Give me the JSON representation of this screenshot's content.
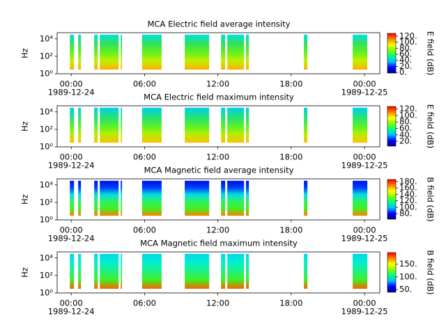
{
  "chart_data": [
    {
      "type": "spectrogram",
      "title": "MCA  Electric field average intensity",
      "ylabel": "Hz",
      "yscale": "log",
      "ylim": [
        1,
        50000
      ],
      "yticks": [
        {
          "value": 1,
          "label": "10⁰"
        },
        {
          "value": 100,
          "label": "10²"
        },
        {
          "value": 10000,
          "label": "10⁴"
        }
      ],
      "xlim": [
        -1.15,
        25.25
      ],
      "xticks": [
        {
          "value": 0,
          "label": "00:00"
        },
        {
          "value": 6,
          "label": "06:00"
        },
        {
          "value": 12,
          "label": "12:00"
        },
        {
          "value": 18,
          "label": "18:00"
        },
        {
          "value": 24,
          "label": "00:00"
        }
      ],
      "date_labels": [
        {
          "value": 0,
          "label": "1989-12-24"
        },
        {
          "value": 24,
          "label": "1989-12-25"
        }
      ],
      "intervals": [
        [
          -0.11,
          0.23
        ],
        [
          0.57,
          0.8
        ],
        [
          1.88,
          2.17
        ],
        [
          2.34,
          3.88
        ],
        [
          4.05,
          4.16
        ],
        [
          5.8,
          7.4
        ],
        [
          9.29,
          11.29
        ],
        [
          12.26,
          12.6
        ],
        [
          12.77,
          14.14
        ],
        [
          14.3,
          14.54
        ],
        [
          19.04,
          19.33
        ],
        [
          23.03,
          24.23
        ]
      ],
      "frequency_range": [
        3,
        30000
      ],
      "band_colors": [
        "#00e0e0",
        "#30e060",
        "#60f020",
        "#c0f000",
        "#ffb000"
      ],
      "colorbar": {
        "label": "E field (dB)",
        "lim": [
          -2,
          129
        ],
        "ticks": [
          {
            "value": 0,
            "label": "0."
          },
          {
            "value": 20,
            "label": "20."
          },
          {
            "value": 40,
            "label": "40."
          },
          {
            "value": 60,
            "label": "60."
          },
          {
            "value": 80,
            "label": "80."
          },
          {
            "value": 100,
            "label": "100."
          },
          {
            "value": 120,
            "label": "120."
          }
        ],
        "colormap": [
          "#000090",
          "#0000ff",
          "#00c0ff",
          "#00ff80",
          "#80ff00",
          "#ffff00",
          "#ff8000",
          "#ff0000"
        ]
      }
    },
    {
      "type": "spectrogram",
      "title": "MCA  Electric field maximum intensity",
      "ylabel": "Hz",
      "yscale": "log",
      "ylim": [
        1,
        50000
      ],
      "yticks": [
        {
          "value": 1,
          "label": "10⁰"
        },
        {
          "value": 100,
          "label": "10²"
        },
        {
          "value": 10000,
          "label": "10⁴"
        }
      ],
      "xlim": [
        -1.15,
        25.25
      ],
      "xticks": [
        {
          "value": 0,
          "label": "00:00"
        },
        {
          "value": 6,
          "label": "06:00"
        },
        {
          "value": 12,
          "label": "12:00"
        },
        {
          "value": 18,
          "label": "18:00"
        },
        {
          "value": 24,
          "label": "00:00"
        }
      ],
      "date_labels": [
        {
          "value": 0,
          "label": "1989-12-24"
        },
        {
          "value": 24,
          "label": "1989-12-25"
        }
      ],
      "intervals": [
        [
          -0.11,
          0.23
        ],
        [
          0.57,
          0.8
        ],
        [
          1.88,
          2.17
        ],
        [
          2.34,
          3.88
        ],
        [
          4.05,
          4.16
        ],
        [
          5.8,
          7.4
        ],
        [
          9.29,
          11.29
        ],
        [
          12.26,
          12.6
        ],
        [
          12.77,
          14.14
        ],
        [
          14.3,
          14.54
        ],
        [
          19.04,
          19.33
        ],
        [
          23.03,
          24.23
        ]
      ],
      "frequency_range": [
        3,
        30000
      ],
      "band_colors": [
        "#00d0f0",
        "#20e080",
        "#50f030",
        "#b0f000",
        "#ffc000"
      ],
      "colorbar": {
        "label": "E field (dB)",
        "lim": [
          5,
          128
        ],
        "ticks": [
          {
            "value": 20,
            "label": "20."
          },
          {
            "value": 40,
            "label": "40."
          },
          {
            "value": 60,
            "label": "60."
          },
          {
            "value": 80,
            "label": "80."
          },
          {
            "value": 100,
            "label": "100."
          },
          {
            "value": 120,
            "label": "120."
          }
        ],
        "colormap": [
          "#000090",
          "#0000ff",
          "#00c0ff",
          "#00ff80",
          "#80ff00",
          "#ffff00",
          "#ff8000",
          "#ff0000"
        ]
      }
    },
    {
      "type": "spectrogram",
      "title": "MCA  Magnetic field average intensity",
      "ylabel": "Hz",
      "yscale": "log",
      "ylim": [
        1,
        50000
      ],
      "yticks": [
        {
          "value": 1,
          "label": "10⁰"
        },
        {
          "value": 100,
          "label": "10²"
        },
        {
          "value": 10000,
          "label": "10⁴"
        }
      ],
      "xlim": [
        -1.15,
        25.25
      ],
      "xticks": [
        {
          "value": 0,
          "label": "00:00"
        },
        {
          "value": 6,
          "label": "06:00"
        },
        {
          "value": 12,
          "label": "12:00"
        },
        {
          "value": 18,
          "label": "18:00"
        },
        {
          "value": 24,
          "label": "00:00"
        }
      ],
      "date_labels": [
        {
          "value": 0,
          "label": "1989-12-24"
        },
        {
          "value": 24,
          "label": "1989-12-25"
        }
      ],
      "intervals": [
        [
          -0.11,
          0.23
        ],
        [
          0.57,
          0.8
        ],
        [
          1.88,
          2.17
        ],
        [
          2.34,
          3.88
        ],
        [
          4.05,
          4.16
        ],
        [
          5.8,
          7.4
        ],
        [
          9.29,
          11.29
        ],
        [
          12.26,
          12.6
        ],
        [
          12.77,
          14.14
        ],
        [
          14.3,
          14.54
        ],
        [
          19.04,
          19.33
        ],
        [
          23.03,
          24.23
        ]
      ],
      "frequency_range": [
        3,
        30000
      ],
      "band_colors": [
        "#0010e0",
        "#0040ff",
        "#00e0e0",
        "#30f060",
        "#40f020",
        "#ff8000"
      ],
      "colorbar": {
        "label": "B field (dB)",
        "lim": [
          63,
          186
        ],
        "ticks": [
          {
            "value": 80,
            "label": "80."
          },
          {
            "value": 100,
            "label": "100."
          },
          {
            "value": 120,
            "label": "120."
          },
          {
            "value": 140,
            "label": "140."
          },
          {
            "value": 160,
            "label": "160."
          },
          {
            "value": 180,
            "label": "180."
          }
        ],
        "colormap": [
          "#000090",
          "#0000ff",
          "#00c0ff",
          "#00ff80",
          "#80ff00",
          "#ffff00",
          "#ff8000",
          "#ff0000"
        ]
      }
    },
    {
      "type": "spectrogram",
      "title": "MCA  Magnetic field maximum intensity",
      "ylabel": "Hz",
      "yscale": "log",
      "ylim": [
        1,
        50000
      ],
      "yticks": [
        {
          "value": 1,
          "label": "10⁰"
        },
        {
          "value": 100,
          "label": "10²"
        },
        {
          "value": 10000,
          "label": "10⁴"
        }
      ],
      "xlim": [
        -1.15,
        25.25
      ],
      "xticks": [
        {
          "value": 0,
          "label": "00:00"
        },
        {
          "value": 6,
          "label": "06:00"
        },
        {
          "value": 12,
          "label": "12:00"
        },
        {
          "value": 18,
          "label": "18:00"
        },
        {
          "value": 24,
          "label": "00:00"
        }
      ],
      "date_labels": [
        {
          "value": 0,
          "label": "1989-12-24"
        },
        {
          "value": 24,
          "label": "1989-12-25"
        }
      ],
      "intervals": [
        [
          -0.11,
          0.23
        ],
        [
          0.57,
          0.8
        ],
        [
          1.88,
          2.17
        ],
        [
          2.34,
          3.88
        ],
        [
          4.05,
          4.16
        ],
        [
          5.8,
          7.4
        ],
        [
          9.29,
          11.29
        ],
        [
          12.26,
          12.6
        ],
        [
          12.77,
          14.14
        ],
        [
          14.3,
          14.54
        ],
        [
          19.04,
          19.33
        ],
        [
          23.03,
          24.23
        ]
      ],
      "frequency_range": [
        3,
        30000
      ],
      "band_colors": [
        "#00d8e8",
        "#00f0d0",
        "#20f080",
        "#40f020",
        "#ff6000"
      ],
      "colorbar": {
        "label": "B field (dB)",
        "lim": [
          39,
          196
        ],
        "ticks": [
          {
            "value": 50,
            "label": "50."
          },
          {
            "value": 100,
            "label": "100."
          },
          {
            "value": 150,
            "label": "150."
          }
        ],
        "colormap": [
          "#000090",
          "#0000ff",
          "#00c0ff",
          "#00ff80",
          "#80ff00",
          "#ffff00",
          "#ff8000",
          "#ff0000"
        ]
      }
    }
  ]
}
